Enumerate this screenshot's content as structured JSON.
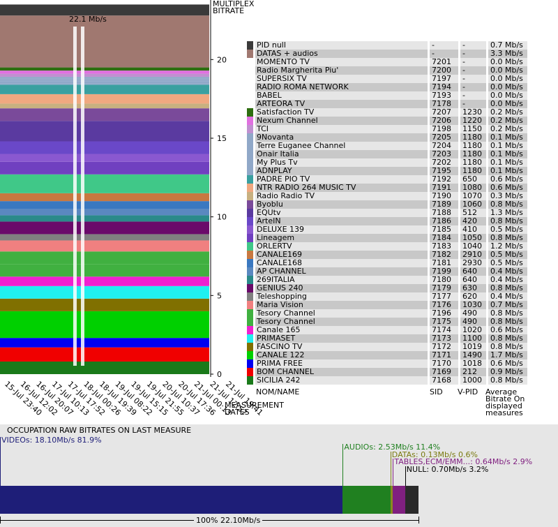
{
  "chart_data": {
    "type": "area",
    "peak_label": "22.1 Mb/s",
    "ylabel": "MULTIPLEX BITRATE",
    "xlabel": "MEASUREMENT DATES",
    "yticks": [
      0,
      5,
      10,
      15,
      20
    ],
    "ylim": [
      0,
      22.1
    ],
    "x_ticks": [
      "15-Jul 23:40",
      "16-Jul 12:02",
      "16-Jul 20:07",
      "17-Jul 10:13",
      "17-Jul 17:52",
      "18-Jul 00:26",
      "18-Jul 19:39",
      "19-Jul 08:22",
      "19-Jul 15:15",
      "19-Jul 21:55",
      "20-Jul 10:37",
      "20-Jul 17:36",
      "21-Jul 00:13",
      "21-Jul 12:57",
      "21-Jul 19:41"
    ],
    "columns": {
      "name": "NOM/NAME",
      "sid": "SID",
      "vpid": "V-PID",
      "bitrate": "Average Bitrate On displayed measures"
    },
    "series": [
      {
        "name": "PID null",
        "sid": "-",
        "vpid": "-",
        "bitrate": "0.7 Mb/s",
        "value": 0.7,
        "color": "#3a3a3a"
      },
      {
        "name": "DATAS + audios",
        "sid": "-",
        "vpid": "-",
        "bitrate": "3.3 Mb/s",
        "value": 3.3,
        "color": "#a07870"
      },
      {
        "name": "MOMENTO TV",
        "sid": "7201",
        "vpid": "-",
        "bitrate": "0.0 Mb/s",
        "value": 0.0,
        "color": ""
      },
      {
        "name": "Radio Margherita Piu'",
        "sid": "7200",
        "vpid": "-",
        "bitrate": "0.0 Mb/s",
        "value": 0.0,
        "color": ""
      },
      {
        "name": "SUPERSIX TV",
        "sid": "7197",
        "vpid": "-",
        "bitrate": "0.0 Mb/s",
        "value": 0.0,
        "color": ""
      },
      {
        "name": "RADIO ROMA NETWORK",
        "sid": "7194",
        "vpid": "-",
        "bitrate": "0.0 Mb/s",
        "value": 0.0,
        "color": ""
      },
      {
        "name": "BABEL",
        "sid": "7193",
        "vpid": "-",
        "bitrate": "0.0 Mb/s",
        "value": 0.0,
        "color": ""
      },
      {
        "name": "ARTEORA TV",
        "sid": "7178",
        "vpid": "-",
        "bitrate": "0.0 Mb/s",
        "value": 0.0,
        "color": ""
      },
      {
        "name": "Satisfaction TV",
        "sid": "7207",
        "vpid": "1230",
        "bitrate": "0.2 Mb/s",
        "value": 0.2,
        "color": "#2e6e10"
      },
      {
        "name": "Nexum Channel",
        "sid": "7206",
        "vpid": "1220",
        "bitrate": "0.2 Mb/s",
        "value": 0.2,
        "color": "#e070e0"
      },
      {
        "name": "TCI",
        "sid": "7198",
        "vpid": "1150",
        "bitrate": "0.2 Mb/s",
        "value": 0.2,
        "color": "#c090d0"
      },
      {
        "name": "9Novanta",
        "sid": "7205",
        "vpid": "1180",
        "bitrate": "0.1 Mb/s",
        "value": 0.1,
        "color": "#90a8c8"
      },
      {
        "name": "Terre Euganee Channel",
        "sid": "7204",
        "vpid": "1180",
        "bitrate": "0.1 Mb/s",
        "value": 0.1,
        "color": "#90a8c8"
      },
      {
        "name": "Onair Italia",
        "sid": "7203",
        "vpid": "1180",
        "bitrate": "0.1 Mb/s",
        "value": 0.1,
        "color": "#90a8c8"
      },
      {
        "name": "My Plus Tv",
        "sid": "7202",
        "vpid": "1180",
        "bitrate": "0.1 Mb/s",
        "value": 0.1,
        "color": "#90a8c8"
      },
      {
        "name": "ADNPLAY",
        "sid": "7195",
        "vpid": "1180",
        "bitrate": "0.1 Mb/s",
        "value": 0.1,
        "color": "#90a8c8"
      },
      {
        "name": "PADRE PIO TV",
        "sid": "7192",
        "vpid": "650",
        "bitrate": "0.6 Mb/s",
        "value": 0.6,
        "color": "#3aa0a0"
      },
      {
        "name": "NTR RADIO 264 MUSIC TV",
        "sid": "7191",
        "vpid": "1080",
        "bitrate": "0.6 Mb/s",
        "value": 0.6,
        "color": "#f0a880"
      },
      {
        "name": "Radio Radio TV",
        "sid": "7190",
        "vpid": "1070",
        "bitrate": "0.3 Mb/s",
        "value": 0.3,
        "color": "#c8b080"
      },
      {
        "name": "Byoblu",
        "sid": "7189",
        "vpid": "1060",
        "bitrate": "0.8 Mb/s",
        "value": 0.8,
        "color": "#7a4a9a"
      },
      {
        "name": "EQUtv",
        "sid": "7188",
        "vpid": "512",
        "bitrate": "1.3 Mb/s",
        "value": 1.3,
        "color": "#5a3aa0"
      },
      {
        "name": "ArteIN",
        "sid": "7186",
        "vpid": "420",
        "bargrate": "",
        "bitrate": "0.8 Mb/s",
        "value": 0.8,
        "color": "#6a48c8"
      },
      {
        "name": "DELUXE 139",
        "sid": "7185",
        "vpid": "410",
        "bitrate": "0.5 Mb/s",
        "value": 0.5,
        "color": "#8a58d0"
      },
      {
        "name": "Lineagem",
        "sid": "7184",
        "vpid": "1050",
        "bitrate": "0.8 Mb/s",
        "value": 0.8,
        "color": "#7040c0"
      },
      {
        "name": "ORLERTV",
        "sid": "7183",
        "vpid": "1040",
        "bitrate": "1.2 Mb/s",
        "value": 1.2,
        "color": "#40c888"
      },
      {
        "name": "CANALE169",
        "sid": "7182",
        "vpid": "2910",
        "bitrate": "0.5 Mb/s",
        "value": 0.5,
        "color": "#c87840"
      },
      {
        "name": "CANALE168",
        "sid": "7181",
        "vpid": "2930",
        "bitrate": "0.5 Mb/s",
        "value": 0.5,
        "color": "#3a78c0"
      },
      {
        "name": "AP CHANNEL",
        "sid": "7199",
        "vpid": "640",
        "bitrate": "0.4 Mb/s",
        "value": 0.4,
        "color": "#5a88c0"
      },
      {
        "name": "269ITALIA",
        "sid": "7180",
        "vpid": "640",
        "bitrate": "0.4 Mb/s",
        "value": 0.4,
        "color": "#2a8a8a"
      },
      {
        "name": "GENIUS 240",
        "sid": "7179",
        "vpid": "630",
        "bitrate": "0.8 Mb/s",
        "value": 0.8,
        "color": "#6a0a6a"
      },
      {
        "name": "Teleshopping",
        "sid": "7177",
        "vpid": "620",
        "bitrate": "0.4 Mb/s",
        "value": 0.4,
        "color": "#808080"
      },
      {
        "name": "Maria Vision",
        "sid": "7176",
        "vpid": "1030",
        "bitrate": "0.7 Mb/s",
        "value": 0.7,
        "color": "#f08080"
      },
      {
        "name": "Tesory Channel",
        "sid": "7196",
        "vpid": "490",
        "bitrate": "0.8 Mb/s",
        "value": 0.8,
        "color": "#40b040"
      },
      {
        "name": "Tesory Channel",
        "sid": "7175",
        "vpid": "490",
        "bitrate": "0.8 Mb/s",
        "value": 0.8,
        "color": "#40b040"
      },
      {
        "name": "Canale 165",
        "sid": "7174",
        "vpid": "1020",
        "bitrate": "0.6 Mb/s",
        "value": 0.6,
        "color": "#f020d0"
      },
      {
        "name": "PRIMASET",
        "sid": "7173",
        "vpid": "1100",
        "bitrate": "0.8 Mb/s",
        "value": 0.8,
        "color": "#20f0f0"
      },
      {
        "name": "FASCINO TV",
        "sid": "7172",
        "vpid": "1019",
        "bitrate": "0.8 Mb/s",
        "value": 0.8,
        "color": "#807000"
      },
      {
        "name": "CANALE 122",
        "sid": "7171",
        "vpid": "1490",
        "bitrate": "1.7 Mb/s",
        "value": 1.7,
        "color": "#00d000"
      },
      {
        "name": "PRIMA FREE",
        "sid": "7170",
        "vpid": "1018",
        "bitrate": "0.6 Mb/s",
        "value": 0.6,
        "color": "#0000f0"
      },
      {
        "name": "BOM CHANNEL",
        "sid": "7169",
        "vpid": "212",
        "bitrate": "0.9 Mb/s",
        "value": 0.9,
        "color": "#f00000"
      },
      {
        "name": "SICILIA 242",
        "sid": "7168",
        "vpid": "1000",
        "bitrate": "0.8 Mb/s",
        "value": 0.8,
        "color": "#1a7a1a"
      }
    ]
  },
  "occupation": {
    "title": "OCCUPATION RAW BITRATES ON LAST MEASURE",
    "total_label": "100%  22.10Mb/s",
    "segments": [
      {
        "key": "videos",
        "label": "VIDEOs: 18.10Mb/s  81.9%",
        "fraction": 0.819,
        "color": "#1e1e78",
        "text_color": "#1e1e78"
      },
      {
        "key": "audios",
        "label": "AUDIOs: 2.53Mb/s  11.4%",
        "fraction": 0.114,
        "color": "#208020",
        "text_color": "#208020"
      },
      {
        "key": "datas",
        "label": "DATAs: 0.13Mb/s  0.6%",
        "fraction": 0.006,
        "color": "#8a8a20",
        "text_color": "#7a7a10"
      },
      {
        "key": "tables",
        "label": "TABLES,ECM/EMM...: 0.64Mb/s  2.9%",
        "fraction": 0.029,
        "color": "#802080",
        "text_color": "#802080"
      },
      {
        "key": "null",
        "label": "NULL: 0.70Mb/s  3.2%",
        "fraction": 0.032,
        "color": "#2a2a2a",
        "text_color": "#000000"
      }
    ]
  }
}
